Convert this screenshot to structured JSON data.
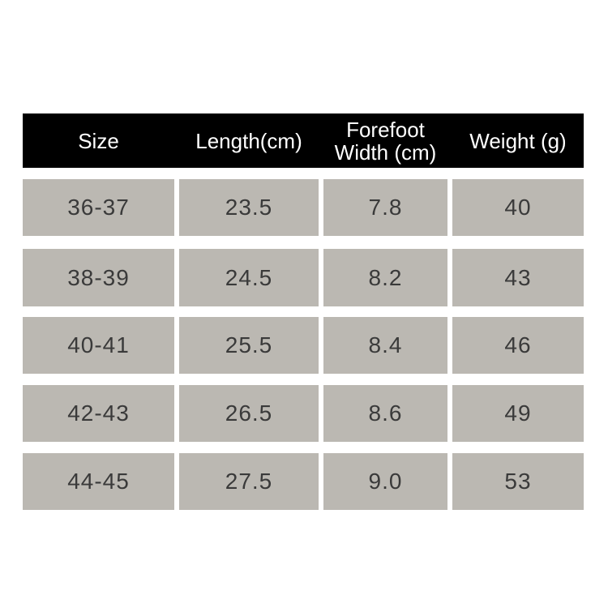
{
  "table": {
    "header": [
      "Size",
      "Length(cm)",
      "Forefoot Width (cm)",
      "Weight (g)"
    ],
    "rows": [
      [
        "36-37",
        "23.5",
        "7.8",
        "40"
      ],
      [
        "38-39",
        "24.5",
        "8.2",
        "43"
      ],
      [
        "40-41",
        "25.5",
        "8.4",
        "46"
      ],
      [
        "42-43",
        "26.5",
        "8.6",
        "49"
      ],
      [
        "44-45",
        "27.5",
        "9.0",
        "53"
      ]
    ]
  }
}
